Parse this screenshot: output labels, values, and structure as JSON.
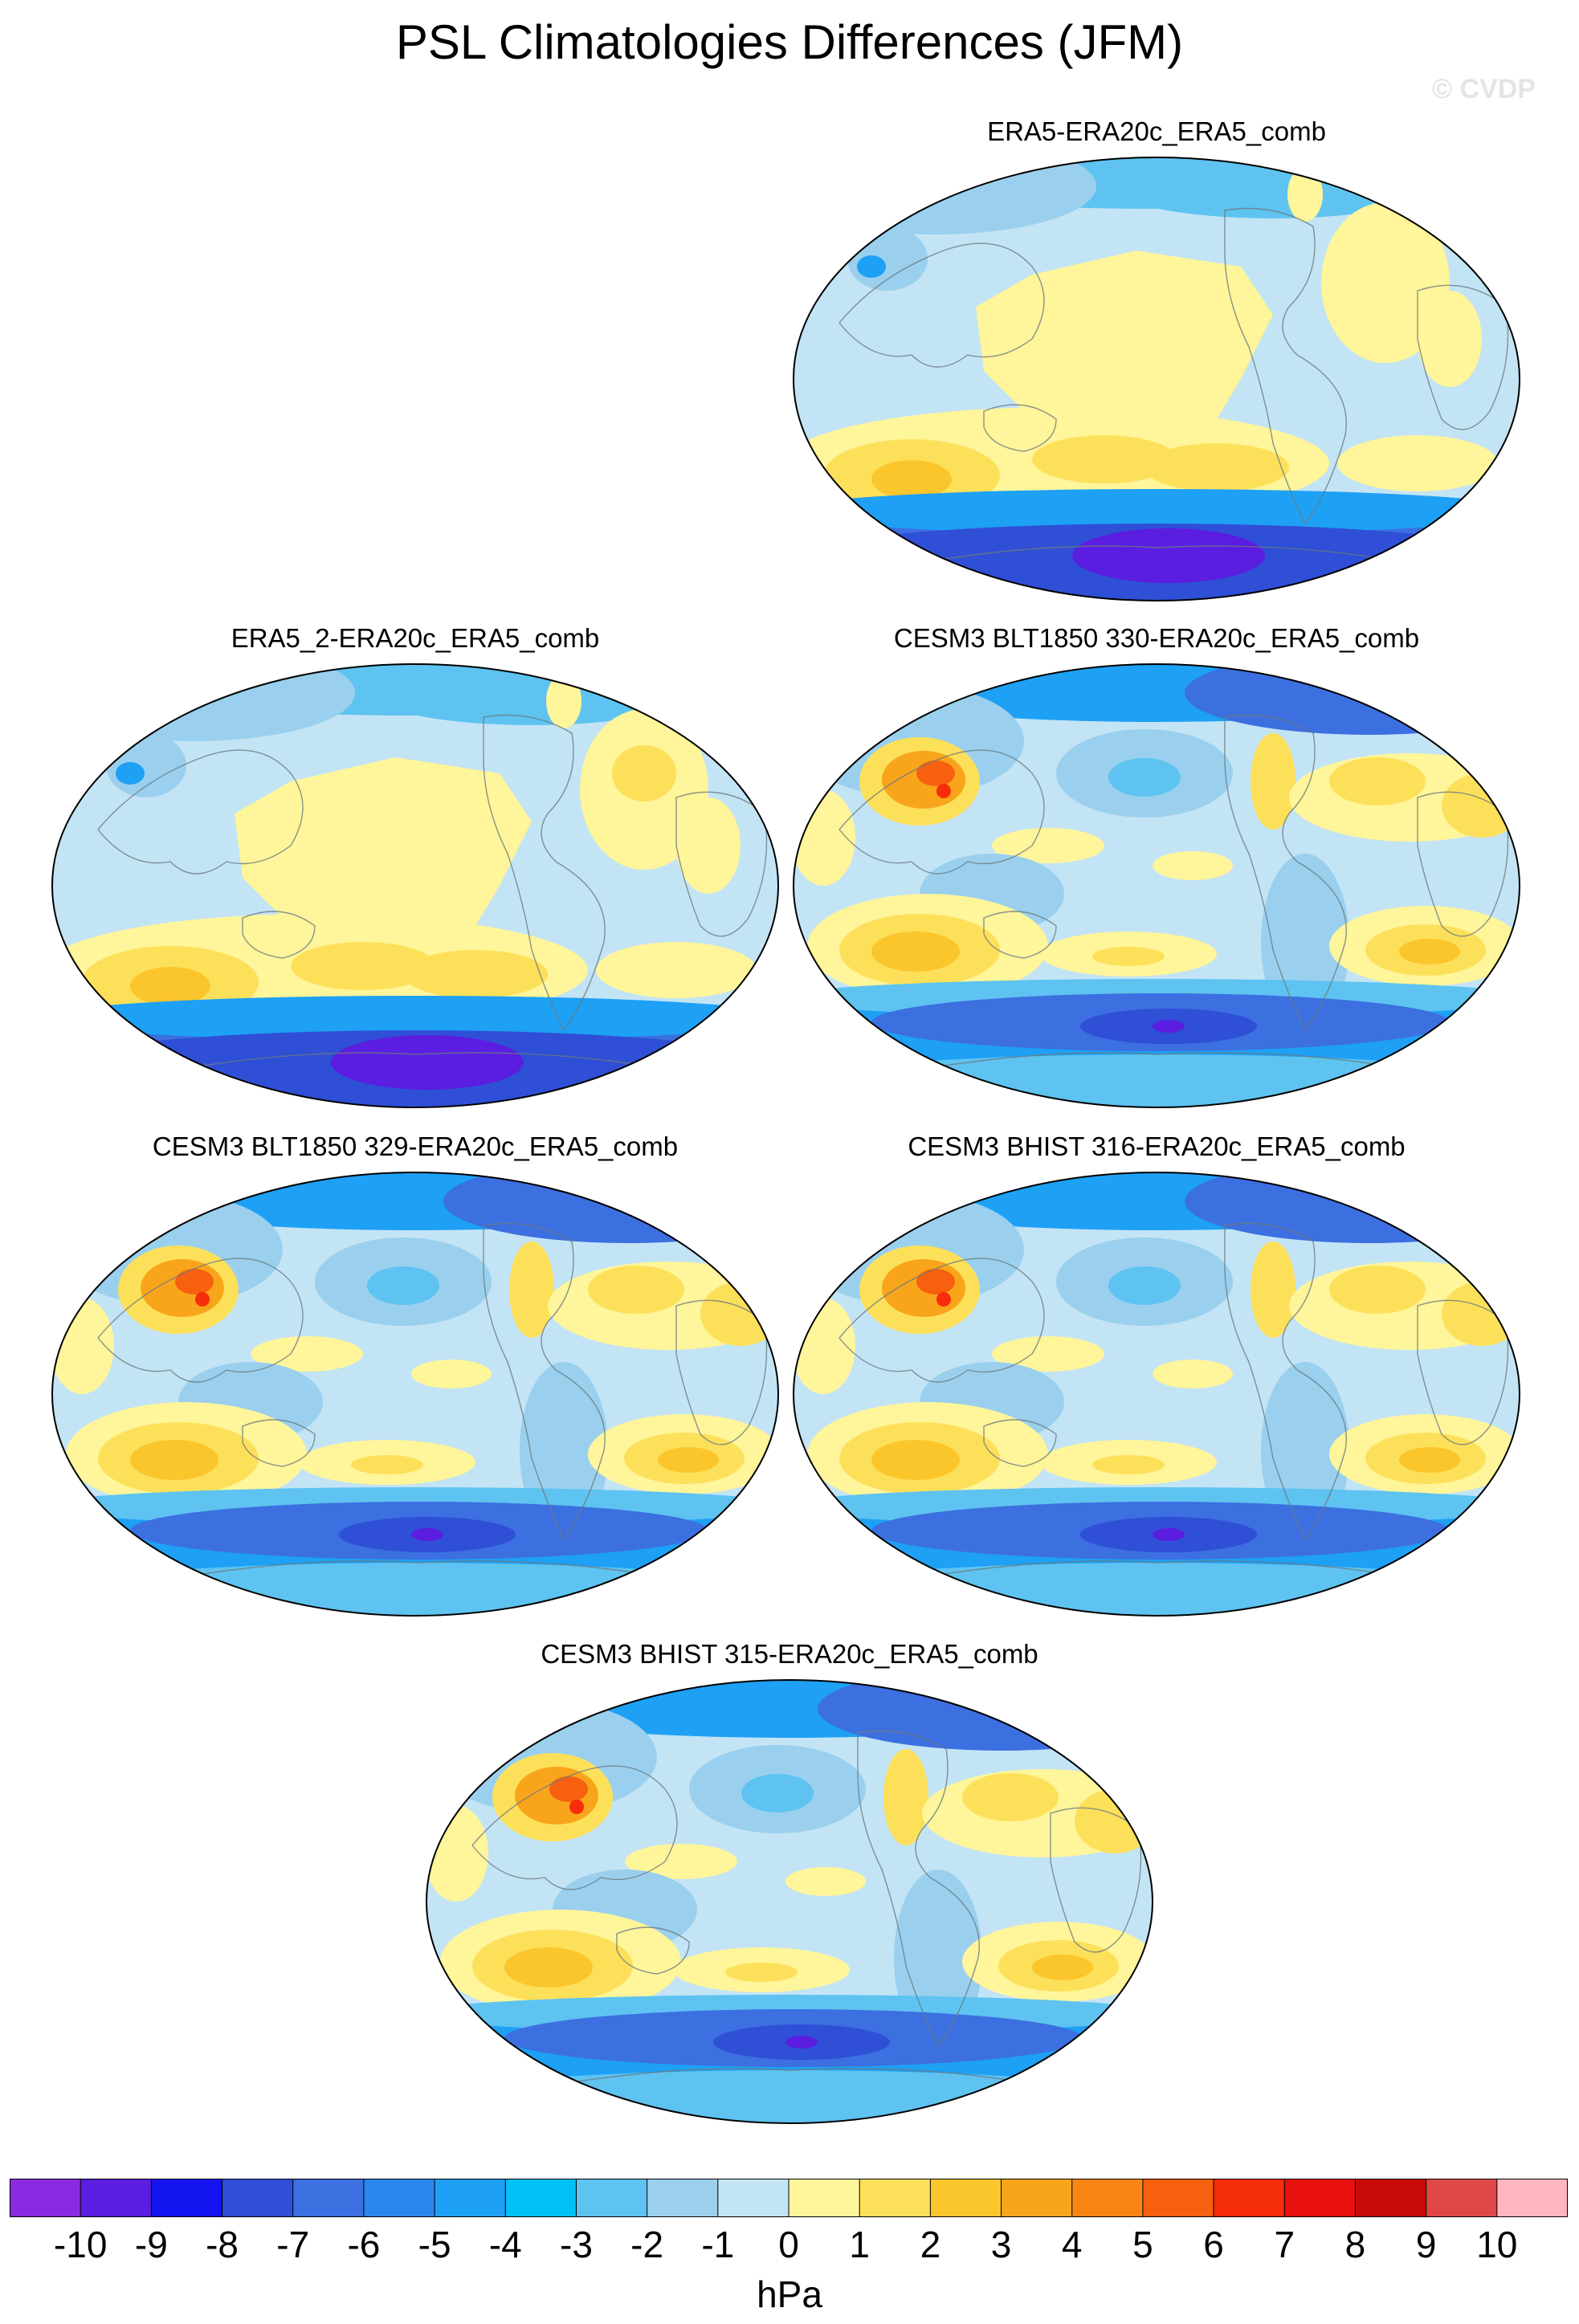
{
  "title": "PSL Climatologies Differences (JFM)",
  "watermark": "© CVDP",
  "units": "hPa",
  "panels": [
    {
      "title": "ERA5-ERA20c_ERA5_comb",
      "style": "reanalysis"
    },
    {
      "title": "ERA5_2-ERA20c_ERA5_comb",
      "style": "reanalysis"
    },
    {
      "title": "CESM3 BLT1850 330-ERA20c_ERA5_comb",
      "style": "model"
    },
    {
      "title": "CESM3 BLT1850 329-ERA20c_ERA5_comb",
      "style": "model"
    },
    {
      "title": "CESM3 BHIST 316-ERA20c_ERA5_comb",
      "style": "model"
    },
    {
      "title": "CESM3 BHIST 315-ERA20c_ERA5_comb",
      "style": "model"
    }
  ],
  "colorbar": {
    "labels": [
      "-10",
      "-9",
      "-8",
      "-7",
      "-6",
      "-5",
      "-4",
      "-3",
      "-2",
      "-1",
      "0",
      "1",
      "2",
      "3",
      "4",
      "5",
      "6",
      "7",
      "8",
      "9",
      "10"
    ],
    "colors": [
      "#8a2be2",
      "#5b1de0",
      "#1414f0",
      "#2f4fd6",
      "#3c6fe0",
      "#2b86ee",
      "#1ea0f5",
      "#00c0f5",
      "#5ec3f0",
      "#9ad0ee",
      "#c3e4f5",
      "#fff59a",
      "#fde05a",
      "#fbc52c",
      "#f9a51c",
      "#f98614",
      "#f7600e",
      "#f52d0a",
      "#e80f0f",
      "#c80a0a",
      "#e04848",
      "#ffb6c1"
    ]
  },
  "palette": {
    "neg1": "#c3e4f5",
    "neg2": "#9ad0ee",
    "neg3": "#5ec3f0",
    "neg4": "#1ea0f5",
    "neg6": "#3c6fe0",
    "neg8": "#2f4fd6",
    "neg9": "#5b1de0",
    "pos1": "#fff59a",
    "pos2": "#fde05a",
    "pos3": "#fbc52c",
    "pos4": "#f9a51c",
    "pos6": "#f7600e",
    "pos7": "#f52d0a"
  }
}
